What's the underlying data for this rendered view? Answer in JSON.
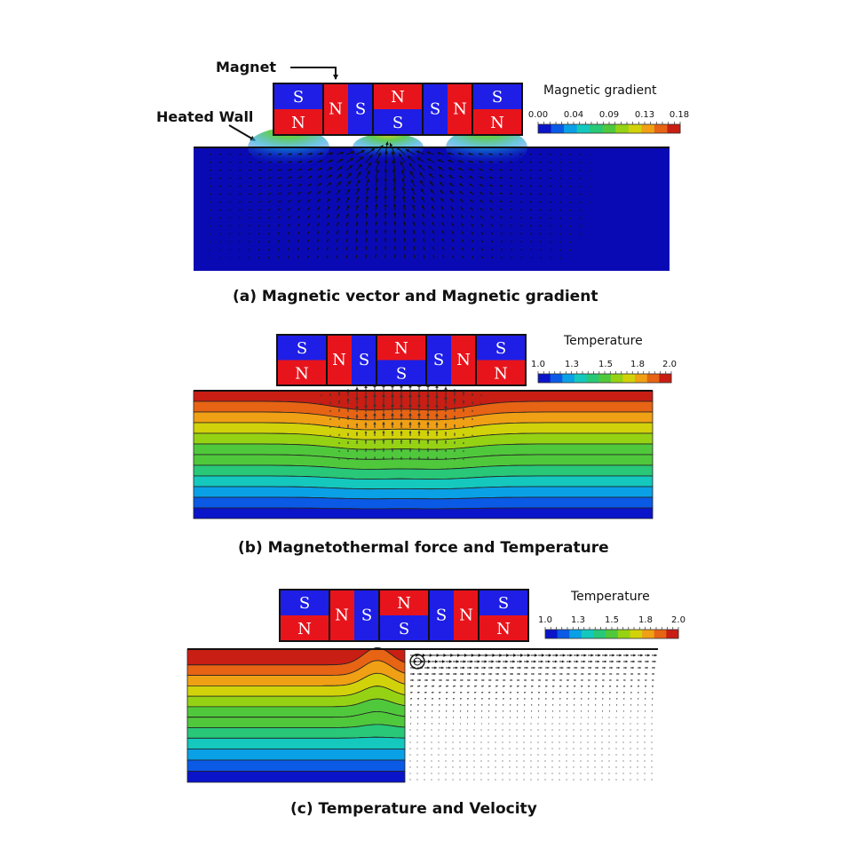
{
  "colors": {
    "north": "#e8141c",
    "south": "#1e1ee6",
    "background": "#ffffff",
    "arrow": "#111111",
    "outline": "#111111"
  },
  "labels": {
    "magnet": "Magnet",
    "heated_wall": "Heated Wall"
  },
  "magnet_blocks": [
    {
      "kind": "vertical",
      "top": "S",
      "bottom": "N"
    },
    {
      "kind": "horizontal",
      "left": "N",
      "right": "S"
    },
    {
      "kind": "vertical",
      "top": "N",
      "bottom": "S"
    },
    {
      "kind": "horizontal",
      "left": "S",
      "right": "N"
    },
    {
      "kind": "vertical",
      "top": "S",
      "bottom": "N"
    }
  ],
  "panels": {
    "a": {
      "caption": "(a) Magnetic vector and Magnetic gradient",
      "colorbar_title": "Magnetic gradient",
      "colorbar_ticks": [
        "0.00",
        "0.04",
        "0.09",
        "0.13",
        "0.18"
      ],
      "field_color": "#0a0ab4"
    },
    "b": {
      "caption": "(b) Magnetothermal force and Temperature",
      "colorbar_title": "Temperature",
      "colorbar_ticks": [
        "1.0",
        "1.3",
        "1.5",
        "1.8",
        "2.0"
      ]
    },
    "c": {
      "caption": "(c) Temperature and Velocity",
      "colorbar_title": "Temperature",
      "colorbar_ticks": [
        "1.0",
        "1.3",
        "1.5",
        "1.8",
        "2.0"
      ]
    }
  },
  "colormap": [
    "#0a14c8",
    "#0a5ae6",
    "#0aa0e6",
    "#14c8be",
    "#28c878",
    "#50c83c",
    "#96d214",
    "#d2d20a",
    "#f0a014",
    "#e66414",
    "#c81e14"
  ]
}
